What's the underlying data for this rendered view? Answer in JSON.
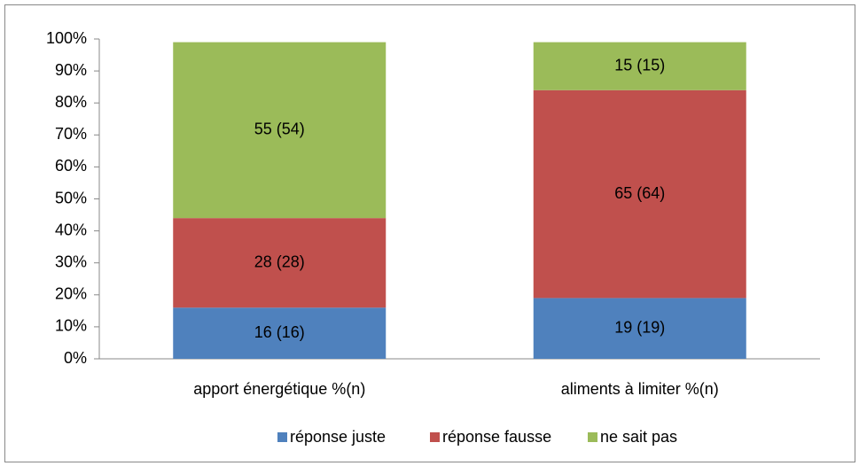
{
  "chart_data": {
    "type": "stacked_bar",
    "categories": [
      "apport énergétique %(n)",
      "aliments à limiter %(n)"
    ],
    "series": [
      {
        "name": "réponse juste",
        "color": "#4f81bd",
        "values": [
          16,
          19
        ],
        "value_labels": [
          "16 (16)",
          "19 (19)"
        ]
      },
      {
        "name": "réponse fausse",
        "color": "#c0504d",
        "values": [
          28,
          65
        ],
        "value_labels": [
          "28 (28)",
          "65 (64)"
        ]
      },
      {
        "name": "ne sait pas",
        "color": "#9bbb59",
        "values": [
          55,
          15
        ],
        "value_labels": [
          "55 (54)",
          "15 (15)"
        ]
      }
    ],
    "ylim": [
      0,
      100
    ],
    "yticks": [
      {
        "value": 0,
        "label": "0%"
      },
      {
        "value": 10,
        "label": "10%"
      },
      {
        "value": 20,
        "label": "20%"
      },
      {
        "value": 30,
        "label": "30%"
      },
      {
        "value": 40,
        "label": "40%"
      },
      {
        "value": 50,
        "label": "50%"
      },
      {
        "value": 60,
        "label": "60%"
      },
      {
        "value": 70,
        "label": "70%"
      },
      {
        "value": 80,
        "label": "80%"
      },
      {
        "value": 90,
        "label": "90%"
      },
      {
        "value": 100,
        "label": "100%"
      }
    ],
    "grid": false,
    "legend": "bottom"
  }
}
